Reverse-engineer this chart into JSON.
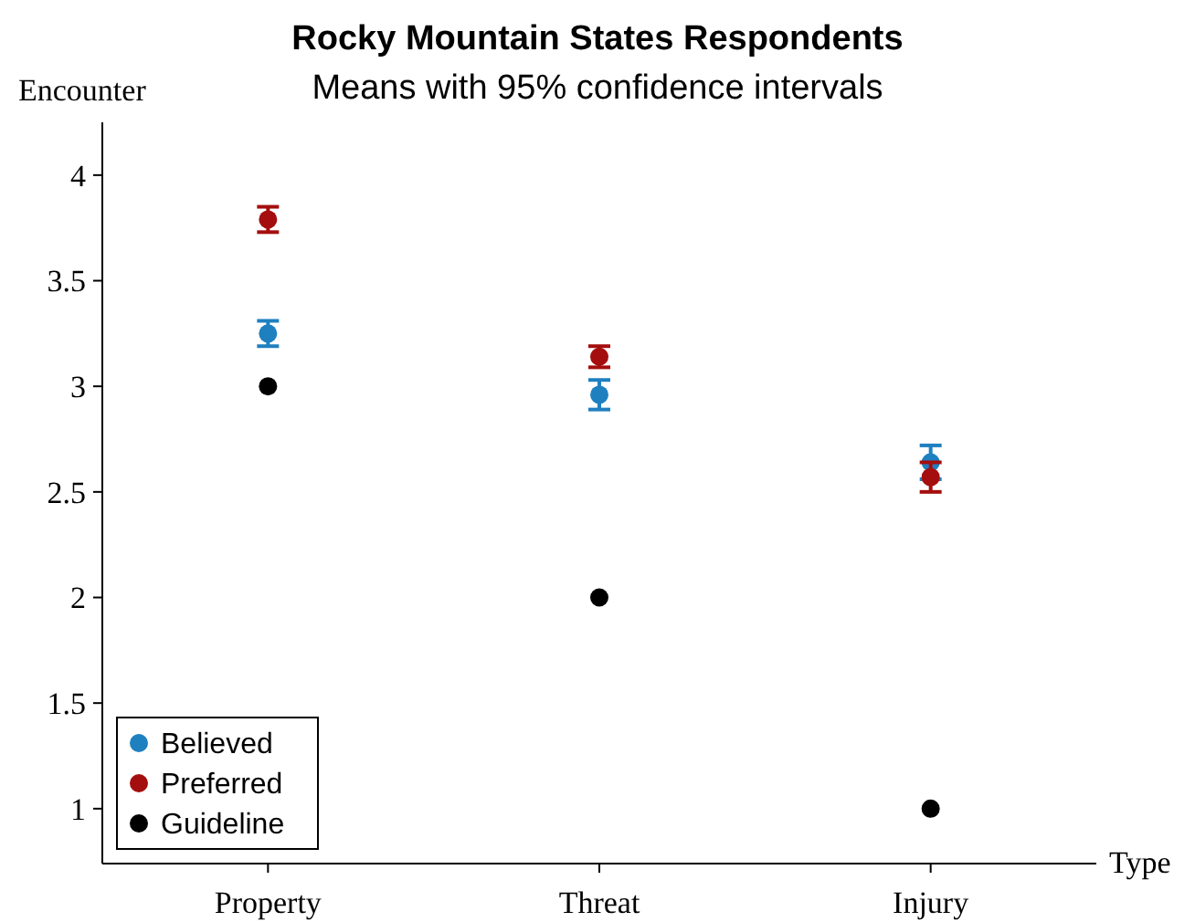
{
  "chart_data": {
    "type": "scatter",
    "title": "Rocky Mountain States Respondents",
    "subtitle": "Means with 95% confidence intervals",
    "xlabel": "Type",
    "ylabel": "Encounter",
    "categories": [
      "Property",
      "Threat",
      "Injury"
    ],
    "series": [
      {
        "name": "Believed",
        "color": "#1f80c0",
        "values": [
          3.25,
          2.96,
          2.64
        ],
        "errors": [
          0.06,
          0.07,
          0.08
        ]
      },
      {
        "name": "Preferred",
        "color": "#a50e0e",
        "values": [
          3.79,
          3.14,
          2.57
        ],
        "errors": [
          0.06,
          0.05,
          0.07
        ]
      },
      {
        "name": "Guideline",
        "color": "#000000",
        "values": [
          3,
          2,
          1
        ]
      }
    ],
    "ylim": [
      0.74,
      4.25
    ],
    "yticks": [
      1,
      1.5,
      2,
      2.5,
      3,
      3.5,
      4
    ],
    "grid": false,
    "legend": "bottom left",
    "marker": "circle"
  }
}
